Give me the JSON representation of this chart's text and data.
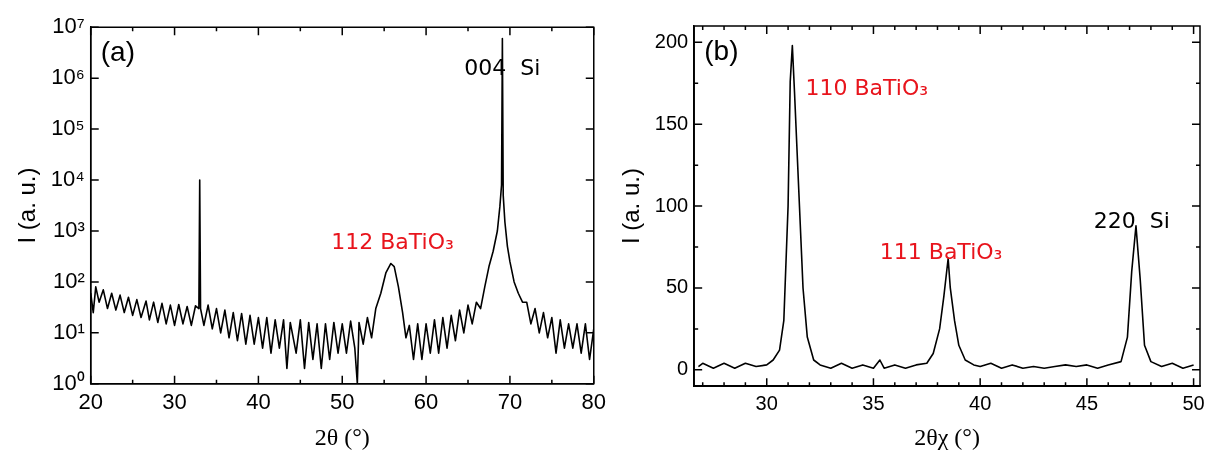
{
  "chart_data": [
    {
      "type": "line",
      "xlabel": "2θ (°)",
      "ylabel": "I (a. u.)",
      "log": "y",
      "marker": "none",
      "xlim": [
        20,
        80
      ],
      "ylim": [
        1,
        10000000
      ],
      "xticks": [
        20,
        {
          "value": 25,
          "label": null
        },
        30,
        {
          "value": 35,
          "label": null
        },
        40,
        {
          "value": 45,
          "label": null
        },
        50,
        {
          "value": 55,
          "label": null
        },
        60,
        {
          "value": 65,
          "label": null
        },
        70,
        {
          "value": 75,
          "label": null
        },
        80
      ],
      "yticks": [
        {
          "value": 1,
          "label": "10⁰"
        },
        {
          "value": 10,
          "label": "10¹"
        },
        {
          "value": 100,
          "label": "10²"
        },
        {
          "value": 1000,
          "label": "10³"
        },
        {
          "value": 10000,
          "label": "10⁴"
        },
        {
          "value": 100000,
          "label": "10⁵"
        },
        {
          "value": 1000000,
          "label": "10⁶"
        },
        {
          "value": 10000000,
          "label": "10⁷"
        }
      ],
      "annotations": [
        "(a)",
        {
          "text": "004  Si",
          "x": 69.1,
          "y": 1500000
        },
        "112 BaTiO₃"
      ],
      "series": [
        {
          "color": "#000000",
          "x": [
            20,
            20.3,
            20.6,
            21,
            21.5,
            22,
            22.5,
            23,
            23.5,
            24,
            24.5,
            25,
            25.5,
            26,
            26.6,
            27,
            27.5,
            28,
            28.5,
            29,
            29.5,
            30,
            30.5,
            31,
            31.5,
            32,
            32.5,
            32.9,
            33,
            33.1,
            33.5,
            34,
            34.5,
            35,
            35.5,
            36,
            36.5,
            37,
            37.5,
            38,
            38.5,
            39,
            39.5,
            40,
            40.5,
            41,
            41.5,
            42,
            42.5,
            43,
            43.4,
            43.8,
            44.5,
            45,
            45.5,
            46,
            46.5,
            47,
            47.5,
            48,
            48.5,
            49,
            49.5,
            50,
            50.5,
            51,
            51.5,
            51.8,
            52,
            52.5,
            53,
            53.5,
            54,
            54.6,
            55.2,
            55.8,
            56.2,
            56.7,
            57.2,
            57.6,
            58,
            58.5,
            59,
            59.5,
            60,
            60.5,
            61,
            61.5,
            62,
            62.5,
            63,
            63.5,
            64,
            64.5,
            65,
            65.5,
            66,
            66.5,
            67,
            67.5,
            68,
            68.5,
            68.8,
            69,
            69.1,
            69.2,
            69.4,
            69.7,
            70,
            70.5,
            71,
            71.5,
            72,
            72.5,
            73,
            73.5,
            74,
            74.5,
            75,
            75.5,
            76,
            76.5,
            77,
            77.5,
            78,
            78.5,
            79,
            79.5,
            80
          ],
          "values": [
            60,
            25,
            80,
            40,
            70,
            30,
            60,
            28,
            55,
            25,
            50,
            22,
            45,
            20,
            42,
            18,
            40,
            16,
            38,
            15,
            35,
            14,
            36,
            15,
            33,
            14,
            34,
            30,
            10000,
            30,
            14,
            35,
            12,
            30,
            10,
            28,
            8,
            25,
            7,
            24,
            6,
            22,
            6,
            20,
            5,
            20,
            4,
            18,
            5,
            18,
            2,
            16,
            4,
            18,
            2,
            16,
            3,
            15,
            2,
            15,
            3,
            16,
            4,
            15,
            4,
            17,
            5,
            1,
            16,
            6,
            20,
            8,
            30,
            60,
            150,
            230,
            200,
            80,
            25,
            8,
            14,
            3,
            15,
            3,
            15,
            4,
            18,
            4,
            20,
            5,
            22,
            7,
            28,
            10,
            35,
            15,
            40,
            30,
            80,
            200,
            400,
            1000,
            3000,
            8000,
            6000000,
            5000,
            1500,
            500,
            250,
            100,
            60,
            40,
            40,
            15,
            30,
            10,
            25,
            8,
            20,
            4,
            18,
            5,
            15,
            5,
            15,
            4,
            15,
            3,
            12
          ]
        }
      ]
    },
    {
      "type": "line",
      "xlabel": "2θχ (°)",
      "ylabel": "I (a. u.)",
      "marker": "none",
      "xlim": [
        26.6,
        50.3
      ],
      "ylim": [
        -10,
        210
      ],
      "xticks": [
        {
          "value": 27,
          "label": null
        },
        {
          "value": 28,
          "label": null
        },
        {
          "value": 29,
          "label": null
        },
        30,
        {
          "value": 31,
          "label": null
        },
        {
          "value": 32,
          "label": null
        },
        {
          "value": 33,
          "label": null
        },
        {
          "value": 34,
          "label": null
        },
        35,
        {
          "value": 36,
          "label": null
        },
        {
          "value": 37,
          "label": null
        },
        {
          "value": 38,
          "label": null
        },
        {
          "value": 39,
          "label": null
        },
        40,
        {
          "value": 41,
          "label": null
        },
        {
          "value": 42,
          "label": null
        },
        {
          "value": 43,
          "label": null
        },
        {
          "value": 44,
          "label": null
        },
        45,
        {
          "value": 46,
          "label": null
        },
        {
          "value": 47,
          "label": null
        },
        {
          "value": 48,
          "label": null
        },
        {
          "value": 49,
          "label": null
        },
        50
      ],
      "yticks": [
        0,
        {
          "value": 25,
          "label": null
        },
        50,
        {
          "value": 75,
          "label": null
        },
        100,
        {
          "value": 125,
          "label": null
        },
        150,
        {
          "value": 175,
          "label": null
        },
        200
      ],
      "annotations": [
        "(b)",
        "110 BaTiO₃",
        "111 BaTiO₃",
        "220  Si"
      ],
      "series": [
        {
          "color": "#000000",
          "x": [
            26.8,
            27,
            27.5,
            28,
            28.5,
            29,
            29.5,
            30,
            30.3,
            30.6,
            30.8,
            31,
            31.1,
            31.2,
            31.3,
            31.5,
            31.7,
            31.9,
            32.2,
            32.5,
            33,
            33.5,
            34,
            34.5,
            35,
            35.3,
            35.5,
            36,
            36.5,
            37,
            37.5,
            37.8,
            38.1,
            38.3,
            38.5,
            38.6,
            38.8,
            39,
            39.3,
            39.7,
            40,
            40.5,
            41,
            41.5,
            42,
            42.5,
            43,
            43.5,
            44,
            44.5,
            45,
            45.5,
            46,
            46.6,
            46.9,
            47.1,
            47.3,
            47.5,
            47.7,
            48,
            48.5,
            49,
            49.5,
            50
          ],
          "values": [
            2,
            4,
            1,
            4,
            1,
            4,
            2,
            3,
            6,
            12,
            30,
            100,
            176,
            198,
            170,
            110,
            50,
            20,
            6,
            3,
            1,
            4,
            1,
            3,
            1,
            6,
            1,
            3,
            1,
            3,
            4,
            10,
            25,
            45,
            68,
            50,
            30,
            15,
            6,
            3,
            2,
            4,
            1,
            3,
            1,
            2,
            1,
            2,
            3,
            2,
            3,
            1,
            3,
            5,
            20,
            60,
            88,
            55,
            15,
            5,
            2,
            4,
            1,
            3
          ]
        }
      ]
    }
  ]
}
